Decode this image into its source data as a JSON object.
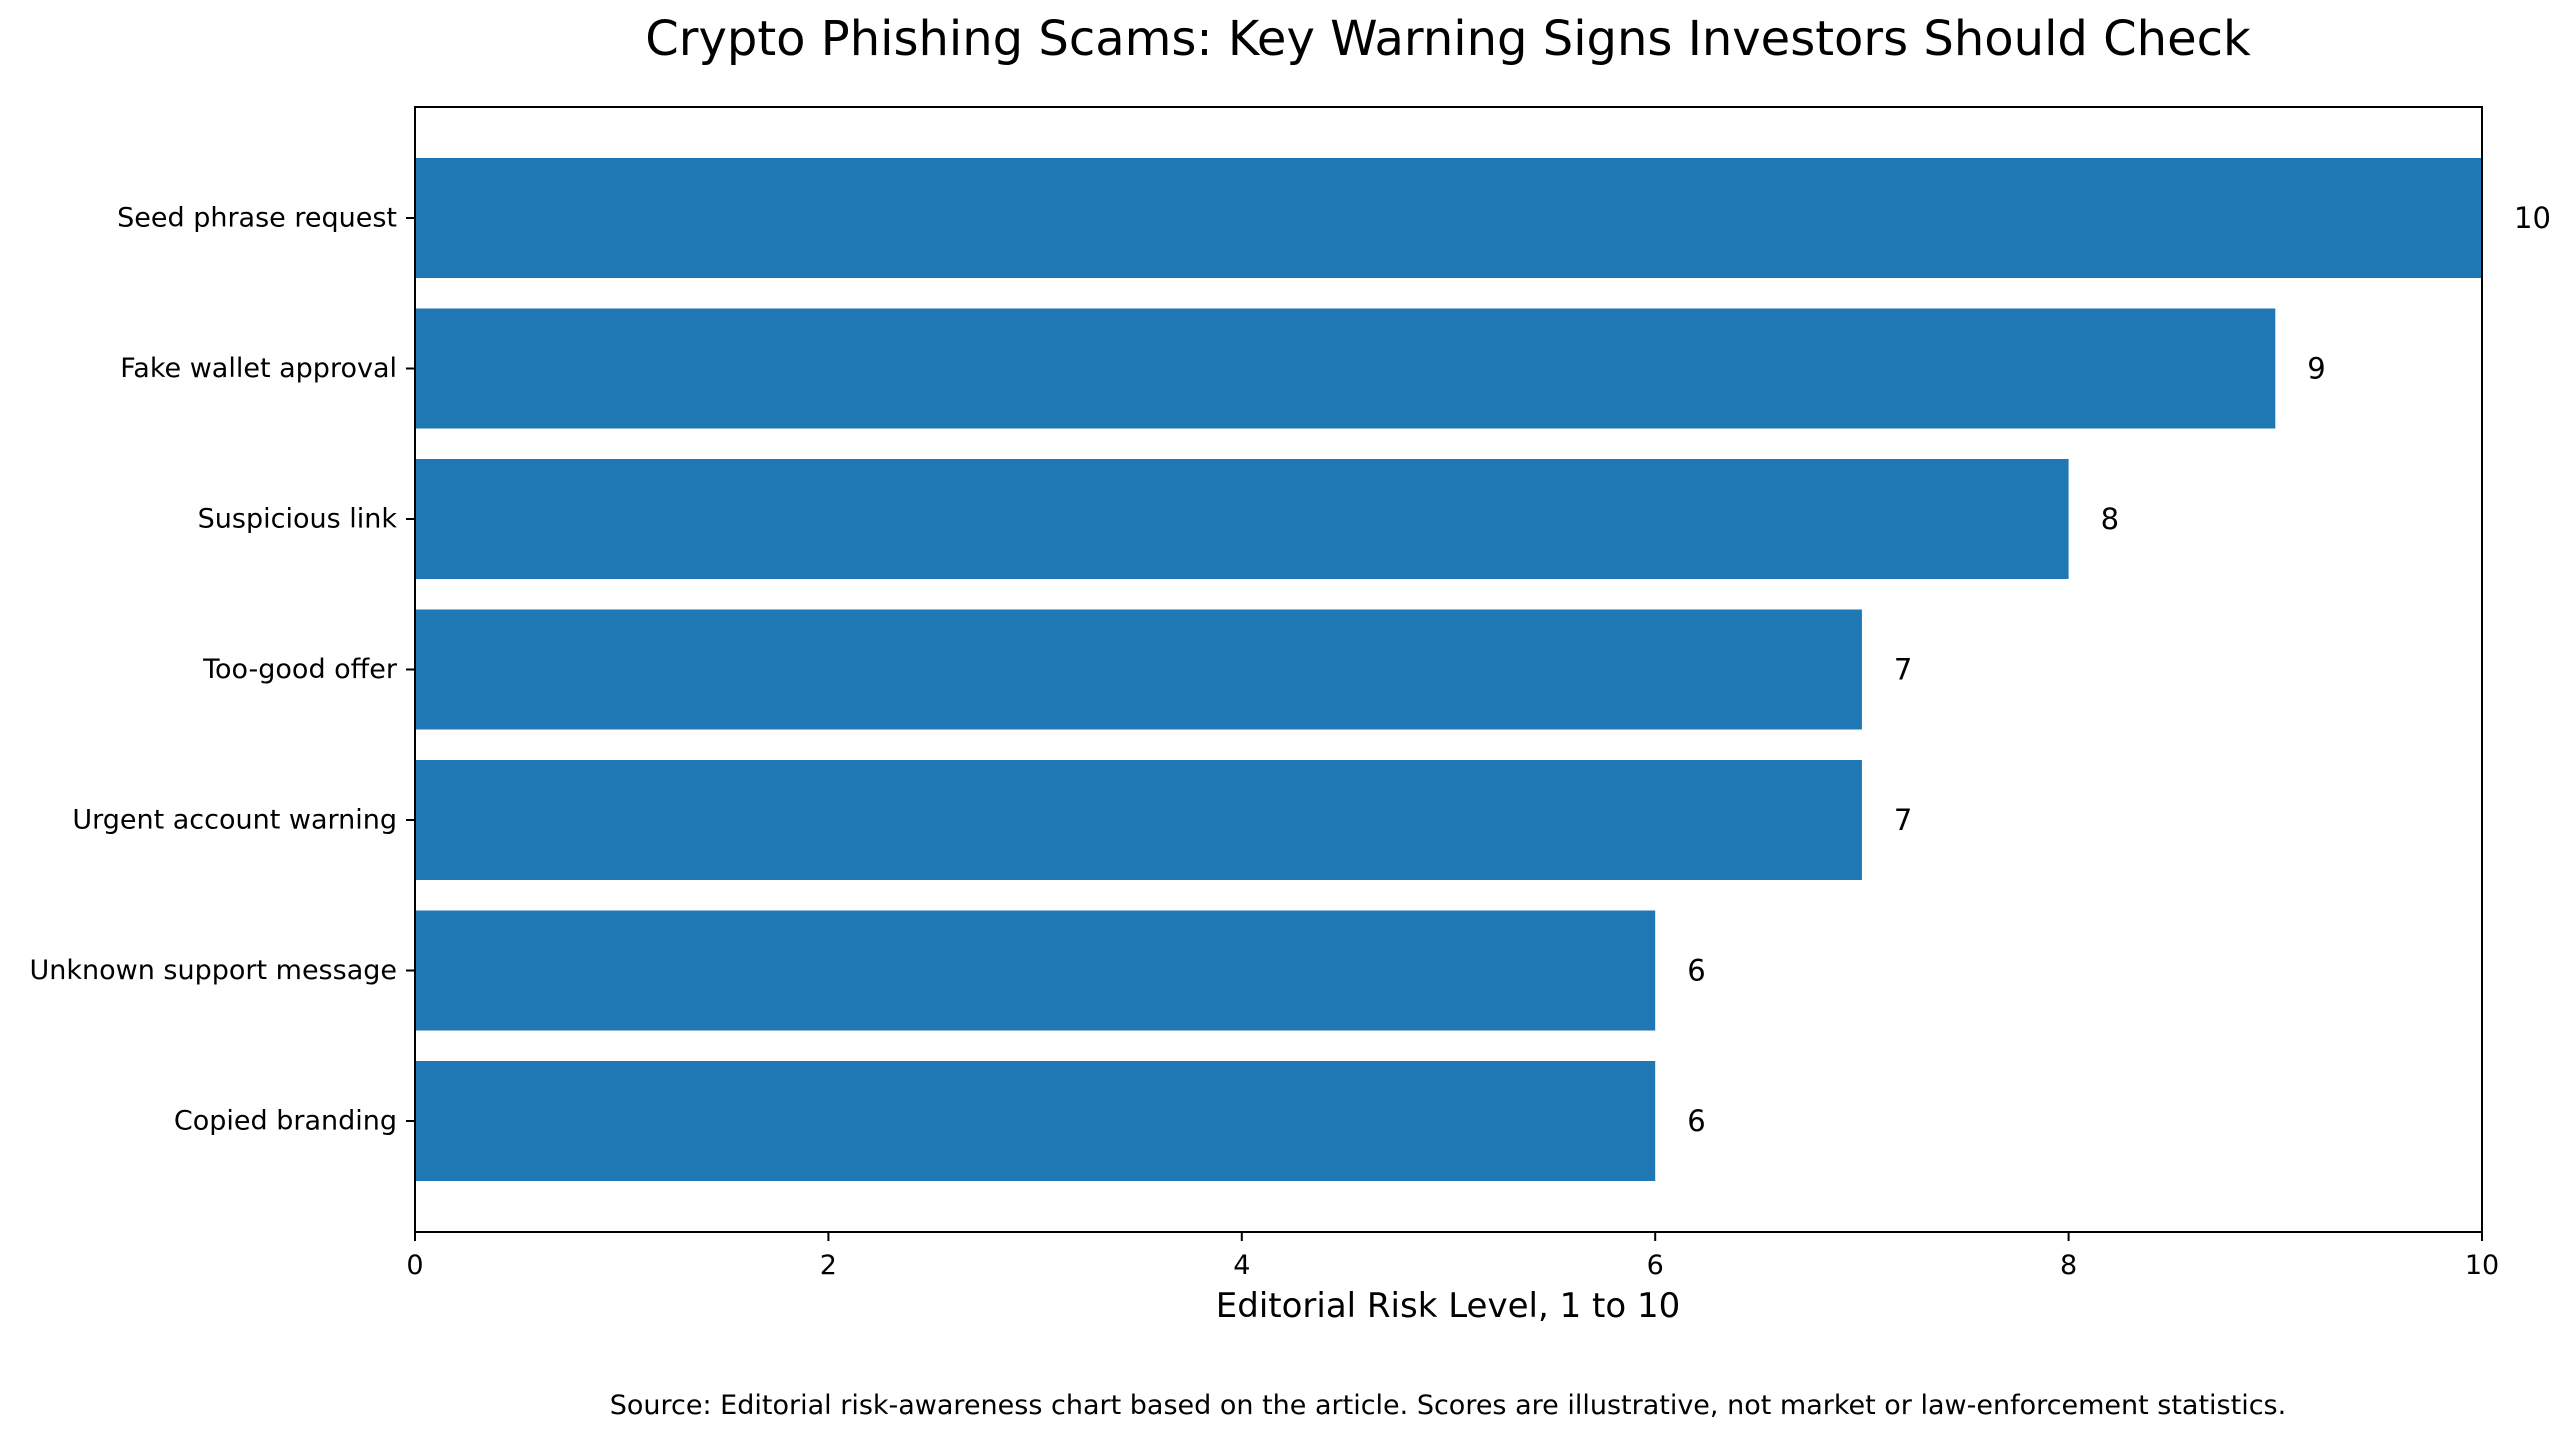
{
  "chart_data": {
    "type": "bar",
    "orientation": "horizontal",
    "title": "Crypto Phishing Scams: Key Warning Signs Investors Should Check",
    "categories": [
      "Seed phrase request",
      "Fake wallet approval",
      "Suspicious link",
      "Too-good offer",
      "Urgent account warning",
      "Unknown support message",
      "Copied branding"
    ],
    "values": [
      10,
      9,
      8,
      7,
      7,
      6,
      6
    ],
    "value_labels": [
      "10",
      "9",
      "8",
      "7",
      "7",
      "6",
      "6"
    ],
    "xlabel": "Editorial Risk Level, 1 to 10",
    "ylabel": "",
    "xlim": [
      0,
      10
    ],
    "xticks": [
      0,
      2,
      4,
      6,
      8,
      10
    ],
    "xtick_labels": [
      "0",
      "2",
      "4",
      "6",
      "8",
      "10"
    ],
    "grid": false,
    "bar_color": "#1f77b4",
    "source": "Source: Editorial risk-awareness chart based on the article. Scores are illustrative, not market or law-enforcement statistics."
  }
}
